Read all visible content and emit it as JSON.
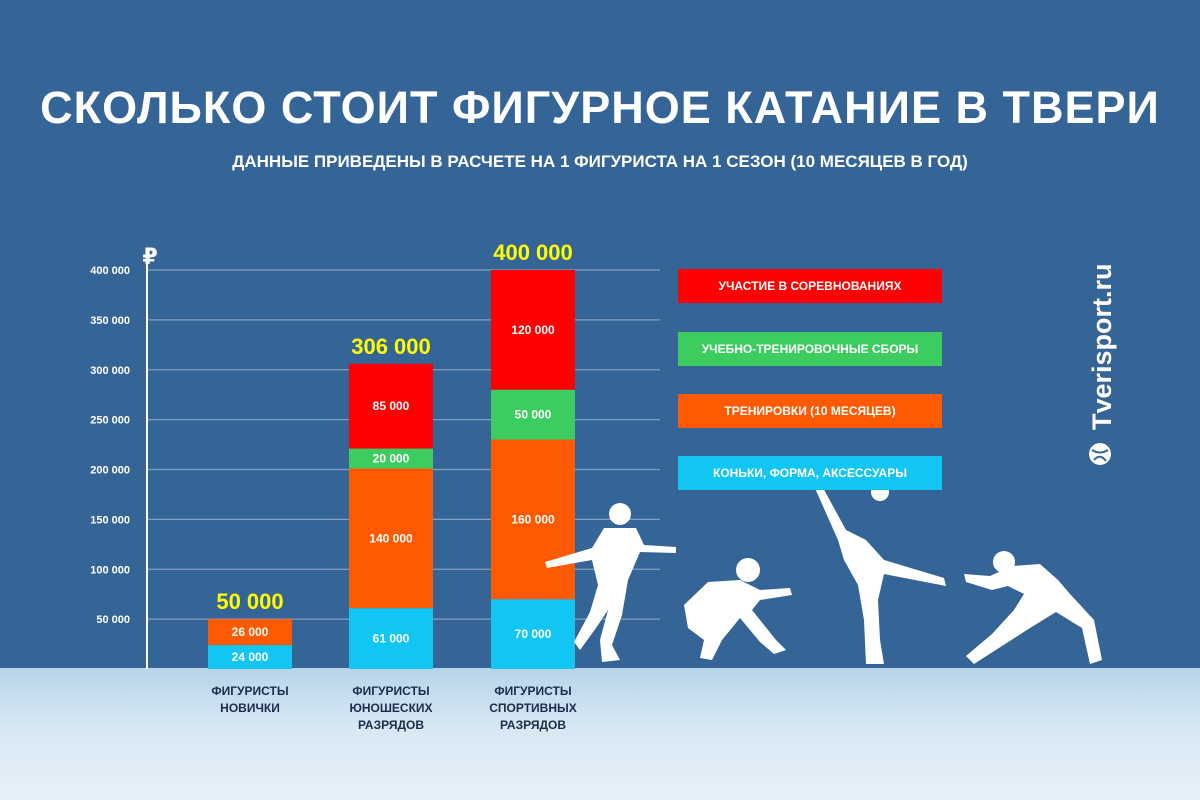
{
  "title": "СКОЛЬКО СТОИТ ФИГУРНОЕ КАТАНИЕ В ТВЕРИ",
  "subtitle": "ДАННЫЕ ПРИВЕДЕНЫ В РАСЧЕТЕ НА 1 ФИГУРИСТА НА 1 СЕЗОН (10 МЕСЯЦЕВ В ГОД)",
  "watermark": "Tverisport.ru",
  "colors": {
    "background": "#356596",
    "axis": "#ffffff",
    "grid": "#7f9fc0",
    "total_label": "#ffff00"
  },
  "legend": [
    {
      "label": "УЧАСТИЕ В СОРЕВНОВАНИЯХ",
      "color": "#ff0000"
    },
    {
      "label": "УЧЕБНО-ТРЕНИРОВОЧНЫЕ СБОРЫ",
      "color": "#3dcc60"
    },
    {
      "label": "ТРЕНИРОВКИ (10 МЕСЯЦЕВ)",
      "color": "#ff5a00"
    },
    {
      "label": "КОНЬКИ, ФОРМА, АКСЕССУАРЫ",
      "color": "#12c6f3"
    }
  ],
  "chart_data": {
    "type": "bar",
    "stacked": true,
    "ylabel": "₽",
    "ylim": [
      0,
      400000
    ],
    "yticks": [
      50000,
      100000,
      150000,
      200000,
      250000,
      300000,
      350000,
      400000
    ],
    "ytick_labels": [
      "50 000",
      "100 000",
      "150 000",
      "200 000",
      "250 000",
      "300 000",
      "350 000",
      "400 000"
    ],
    "grid": true,
    "legend_position": "right",
    "categories": [
      [
        "ФИГУРИСТЫ",
        "НОВИЧКИ"
      ],
      [
        "ФИГУРИСТЫ",
        "ЮНОШЕСКИХ",
        "РАЗРЯДОВ"
      ],
      [
        "ФИГУРИСТЫ",
        "СПОРТИВНЫХ",
        "РАЗРЯДОВ"
      ]
    ],
    "totals": [
      50000,
      306000,
      400000
    ],
    "total_labels": [
      "50 000",
      "306 000",
      "400 000"
    ],
    "series": [
      {
        "name": "КОНЬКИ, ФОРМА, АКСЕССУАРЫ",
        "color": "#12c6f3",
        "values": [
          24000,
          61000,
          70000
        ],
        "labels": [
          "24 000",
          "61 000",
          "70 000"
        ]
      },
      {
        "name": "ТРЕНИРОВКИ (10 МЕСЯЦЕВ)",
        "color": "#ff5a00",
        "values": [
          26000,
          140000,
          160000
        ],
        "labels": [
          "26 000",
          "140 000",
          "160 000"
        ]
      },
      {
        "name": "УЧЕБНО-ТРЕНИРОВОЧНЫЕ СБОРЫ",
        "color": "#3dcc60",
        "values": [
          0,
          20000,
          50000
        ],
        "labels": [
          "",
          "20 000",
          "50 000"
        ]
      },
      {
        "name": "УЧАСТИЕ В СОРЕВНОВАНИЯХ",
        "color": "#ff0000",
        "values": [
          0,
          85000,
          120000
        ],
        "labels": [
          "",
          "85 000",
          "120 000"
        ]
      }
    ]
  }
}
